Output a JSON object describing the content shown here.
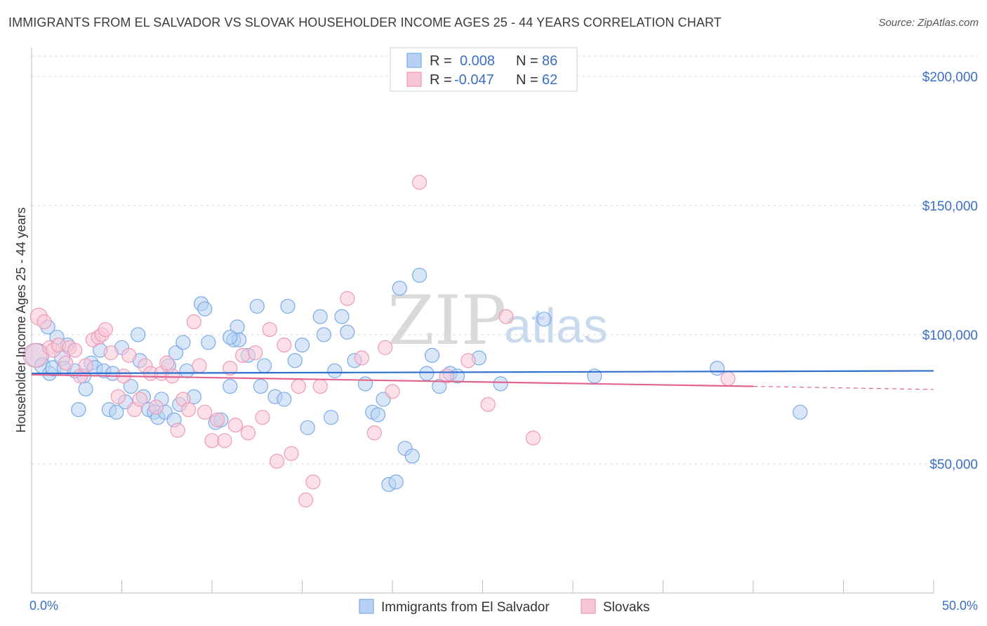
{
  "title": "IMMIGRANTS FROM EL SALVADOR VS SLOVAK HOUSEHOLDER INCOME AGES 25 - 44 YEARS CORRELATION CHART",
  "source": "Source: ZipAtlas.com",
  "watermark": {
    "zip": "ZIP",
    "atlas": "atlas"
  },
  "colors": {
    "blue": "#7aaae8",
    "blue_fill": "#b8d1f3",
    "blue_line": "#2f6fce",
    "pink": "#ee9ab5",
    "pink_fill": "#f7c6d6",
    "pink_line": "#e2658f",
    "grid": "#d8d8d8",
    "tick_text": "#3a6fc4"
  },
  "legend": {
    "rows": [
      {
        "r_label": "R =",
        "r_value": "0.008",
        "n_label": "N =",
        "n_value": "86"
      },
      {
        "r_label": "R =",
        "r_value": "-0.047",
        "n_label": "N =",
        "n_value": "62"
      }
    ]
  },
  "chart_data": {
    "type": "scatter",
    "title": "IMMIGRANTS FROM EL SALVADOR VS SLOVAK HOUSEHOLDER INCOME AGES 25 - 44 YEARS CORRELATION CHART",
    "xlabel": "",
    "ylabel": "Householder Income Ages 25 - 44 years",
    "xlim": [
      0,
      50
    ],
    "ylim": [
      0,
      210000
    ],
    "x_tick_labels": [
      "0.0%",
      "50.0%"
    ],
    "y_ticks": [
      50000,
      100000,
      150000,
      200000
    ],
    "y_tick_labels": [
      "$50,000",
      "$100,000",
      "$150,000",
      "$200,000"
    ],
    "grid": true,
    "legend_position": "top-center",
    "series": [
      {
        "name": "Immigrants from El Salvador",
        "r": 0.008,
        "n": 86,
        "trend": {
          "x": [
            0,
            50
          ],
          "y": [
            85000,
            86000
          ]
        },
        "x": [
          0.3,
          0.6,
          0.9,
          1.0,
          1.2,
          1.4,
          1.7,
          1.8,
          2.0,
          2.4,
          2.6,
          2.9,
          3.0,
          3.3,
          3.5,
          3.8,
          4.0,
          4.3,
          4.5,
          4.7,
          5.0,
          5.2,
          5.5,
          5.9,
          6.0,
          6.2,
          6.5,
          6.8,
          7.0,
          7.2,
          7.4,
          7.6,
          7.9,
          8.0,
          8.2,
          8.4,
          8.6,
          9.0,
          9.4,
          9.6,
          9.8,
          10.2,
          10.5,
          11.0,
          11.2,
          11.4,
          11.5,
          12.0,
          12.5,
          12.7,
          12.9,
          13.5,
          14.0,
          14.2,
          14.6,
          15.0,
          15.3,
          16.0,
          16.2,
          16.6,
          16.8,
          17.2,
          17.5,
          17.9,
          18.5,
          18.9,
          19.2,
          19.5,
          19.8,
          20.2,
          20.4,
          20.7,
          21.1,
          21.5,
          21.9,
          22.2,
          22.6,
          23.2,
          23.6,
          24.8,
          26.0,
          28.4,
          31.2,
          38.0,
          42.6,
          11.0
        ],
        "y": [
          92000,
          88000,
          103000,
          85000,
          87000,
          99000,
          91000,
          87000,
          96000,
          86000,
          71000,
          84000,
          79000,
          89000,
          87000,
          94000,
          86000,
          71000,
          85000,
          70000,
          95000,
          74000,
          80000,
          100000,
          90000,
          76000,
          71000,
          70000,
          68000,
          75000,
          70000,
          88000,
          67000,
          93000,
          73000,
          97000,
          86000,
          76000,
          112000,
          110000,
          97000,
          66000,
          67000,
          80000,
          98000,
          103000,
          98000,
          92000,
          111000,
          80000,
          88000,
          76000,
          75000,
          111000,
          90000,
          96000,
          64000,
          107000,
          100000,
          68000,
          86000,
          107000,
          101000,
          90000,
          81000,
          70000,
          69000,
          75000,
          42000,
          43000,
          118000,
          56000,
          53000,
          123000,
          85000,
          92000,
          80000,
          85000,
          84000,
          91000,
          81000,
          106000,
          84000,
          87000,
          70000,
          99000
        ],
        "sizes": [
          34,
          22,
          20,
          20,
          22,
          20,
          22,
          20,
          20,
          20,
          20,
          20,
          20,
          20,
          22,
          20,
          20,
          20,
          20,
          20,
          20,
          20,
          20,
          20,
          20,
          20,
          20,
          20,
          20,
          20,
          20,
          20,
          20,
          20,
          20,
          20,
          20,
          20,
          20,
          20,
          20,
          20,
          20,
          20,
          20,
          20,
          20,
          20,
          20,
          20,
          20,
          20,
          20,
          20,
          20,
          20,
          20,
          20,
          20,
          20,
          20,
          20,
          20,
          20,
          20,
          20,
          20,
          20,
          20,
          20,
          20,
          20,
          20,
          20,
          20,
          20,
          20,
          20,
          20,
          20,
          20,
          20,
          20,
          20,
          20,
          20
        ]
      },
      {
        "name": "Slovaks",
        "r": -0.047,
        "n": 62,
        "trend": {
          "x": [
            0,
            40,
            50
          ],
          "y": [
            84500,
            80000,
            78800
          ]
        },
        "trend_solid_until_x": 40,
        "x": [
          0.2,
          0.4,
          0.7,
          1.0,
          1.2,
          1.5,
          1.9,
          2.1,
          2.4,
          2.7,
          3.0,
          3.4,
          3.7,
          3.9,
          4.1,
          4.4,
          4.8,
          5.1,
          5.4,
          5.7,
          6.0,
          6.3,
          6.6,
          6.9,
          7.2,
          7.5,
          7.8,
          8.1,
          8.4,
          8.7,
          9.0,
          9.3,
          9.6,
          10.0,
          10.3,
          10.7,
          11.0,
          11.3,
          11.7,
          12.0,
          12.4,
          12.8,
          13.2,
          13.6,
          14.0,
          14.4,
          14.8,
          15.2,
          15.6,
          16.0,
          17.5,
          18.3,
          19.0,
          19.6,
          20.0,
          21.5,
          23.0,
          24.2,
          25.3,
          26.3,
          27.8,
          38.6
        ],
        "y": [
          92000,
          107000,
          105000,
          95000,
          94000,
          96000,
          89000,
          95000,
          94000,
          84000,
          88000,
          98000,
          99000,
          100000,
          102000,
          93000,
          76000,
          84000,
          92000,
          71000,
          75000,
          88000,
          85000,
          72000,
          85000,
          89000,
          84000,
          63000,
          75000,
          71000,
          105000,
          88000,
          70000,
          59000,
          67000,
          59000,
          87000,
          65000,
          92000,
          62000,
          93000,
          68000,
          102000,
          51000,
          96000,
          54000,
          80000,
          36000,
          43000,
          80000,
          114000,
          91000,
          62000,
          95000,
          78000,
          159000,
          84000,
          90000,
          73000,
          107000,
          60000,
          83000
        ],
        "sizes": [
          34,
          24,
          20,
          20,
          20,
          20,
          20,
          20,
          20,
          20,
          20,
          20,
          20,
          20,
          20,
          20,
          20,
          20,
          20,
          20,
          20,
          20,
          20,
          20,
          20,
          20,
          20,
          20,
          20,
          20,
          20,
          20,
          20,
          20,
          20,
          20,
          20,
          20,
          20,
          20,
          20,
          20,
          20,
          20,
          20,
          20,
          20,
          20,
          20,
          20,
          20,
          20,
          20,
          20,
          20,
          20,
          20,
          20,
          20,
          20,
          20,
          20
        ]
      }
    ]
  }
}
